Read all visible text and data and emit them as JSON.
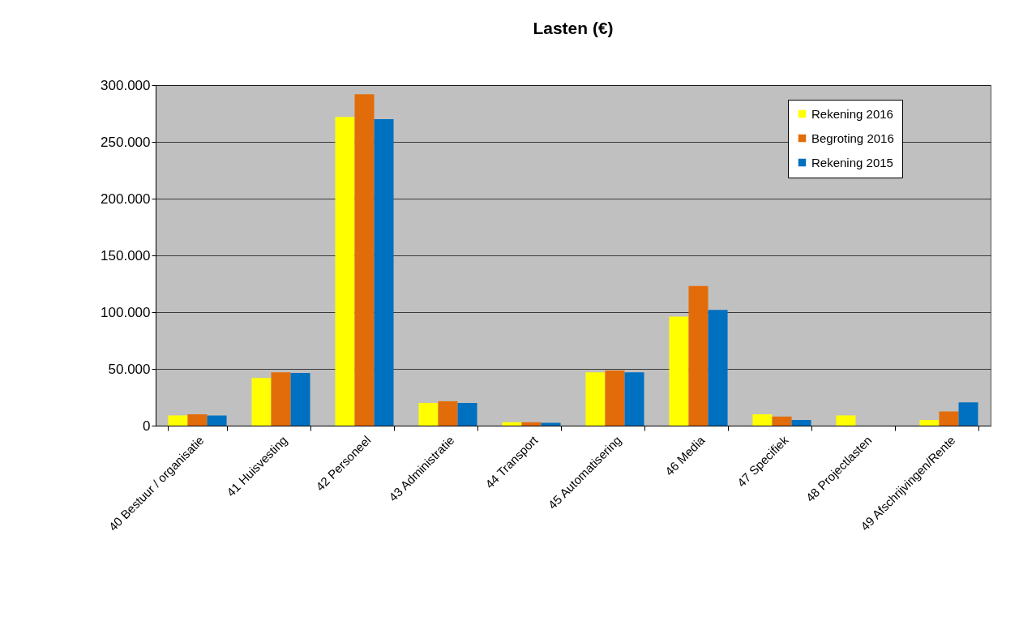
{
  "chart_data": {
    "type": "bar",
    "title": "Lasten (€)",
    "categories": [
      "40 Bestuur / organisatie",
      "41 Huisvesting",
      "42 Personeel",
      "43 Administratie",
      "44 Transport",
      "45 Automatisering",
      "46 Media",
      "47 Specifiek",
      "48 Projectlasten",
      "49 Afschrijvingen/Rente"
    ],
    "series": [
      {
        "name": "Rekening 2016",
        "color": "#ffff00",
        "values": [
          9000,
          42000,
          272000,
          20000,
          3000,
          47000,
          96000,
          10000,
          9000,
          5000
        ]
      },
      {
        "name": "Begroting 2016",
        "color": "#e36c0a",
        "values": [
          10000,
          47000,
          292000,
          21500,
          3000,
          48500,
          123000,
          8000,
          null,
          12500
        ]
      },
      {
        "name": "Rekening 2015",
        "color": "#0070c0",
        "values": [
          9000,
          46500,
          270000,
          20000,
          2500,
          47000,
          102000,
          5000,
          null,
          20500
        ]
      }
    ],
    "ylim": [
      0,
      300000
    ],
    "yticks": [
      0,
      {
        "value": 50000,
        "label": "50.000"
      },
      {
        "value": 100000,
        "label": "100.000"
      },
      {
        "value": 150000,
        "label": "150.000"
      },
      {
        "value": 200000,
        "label": "200.000"
      },
      {
        "value": 250000,
        "label": "250.000"
      },
      {
        "value": 300000,
        "label": "300.000"
      }
    ],
    "grid": "y",
    "legend": "top right"
  }
}
